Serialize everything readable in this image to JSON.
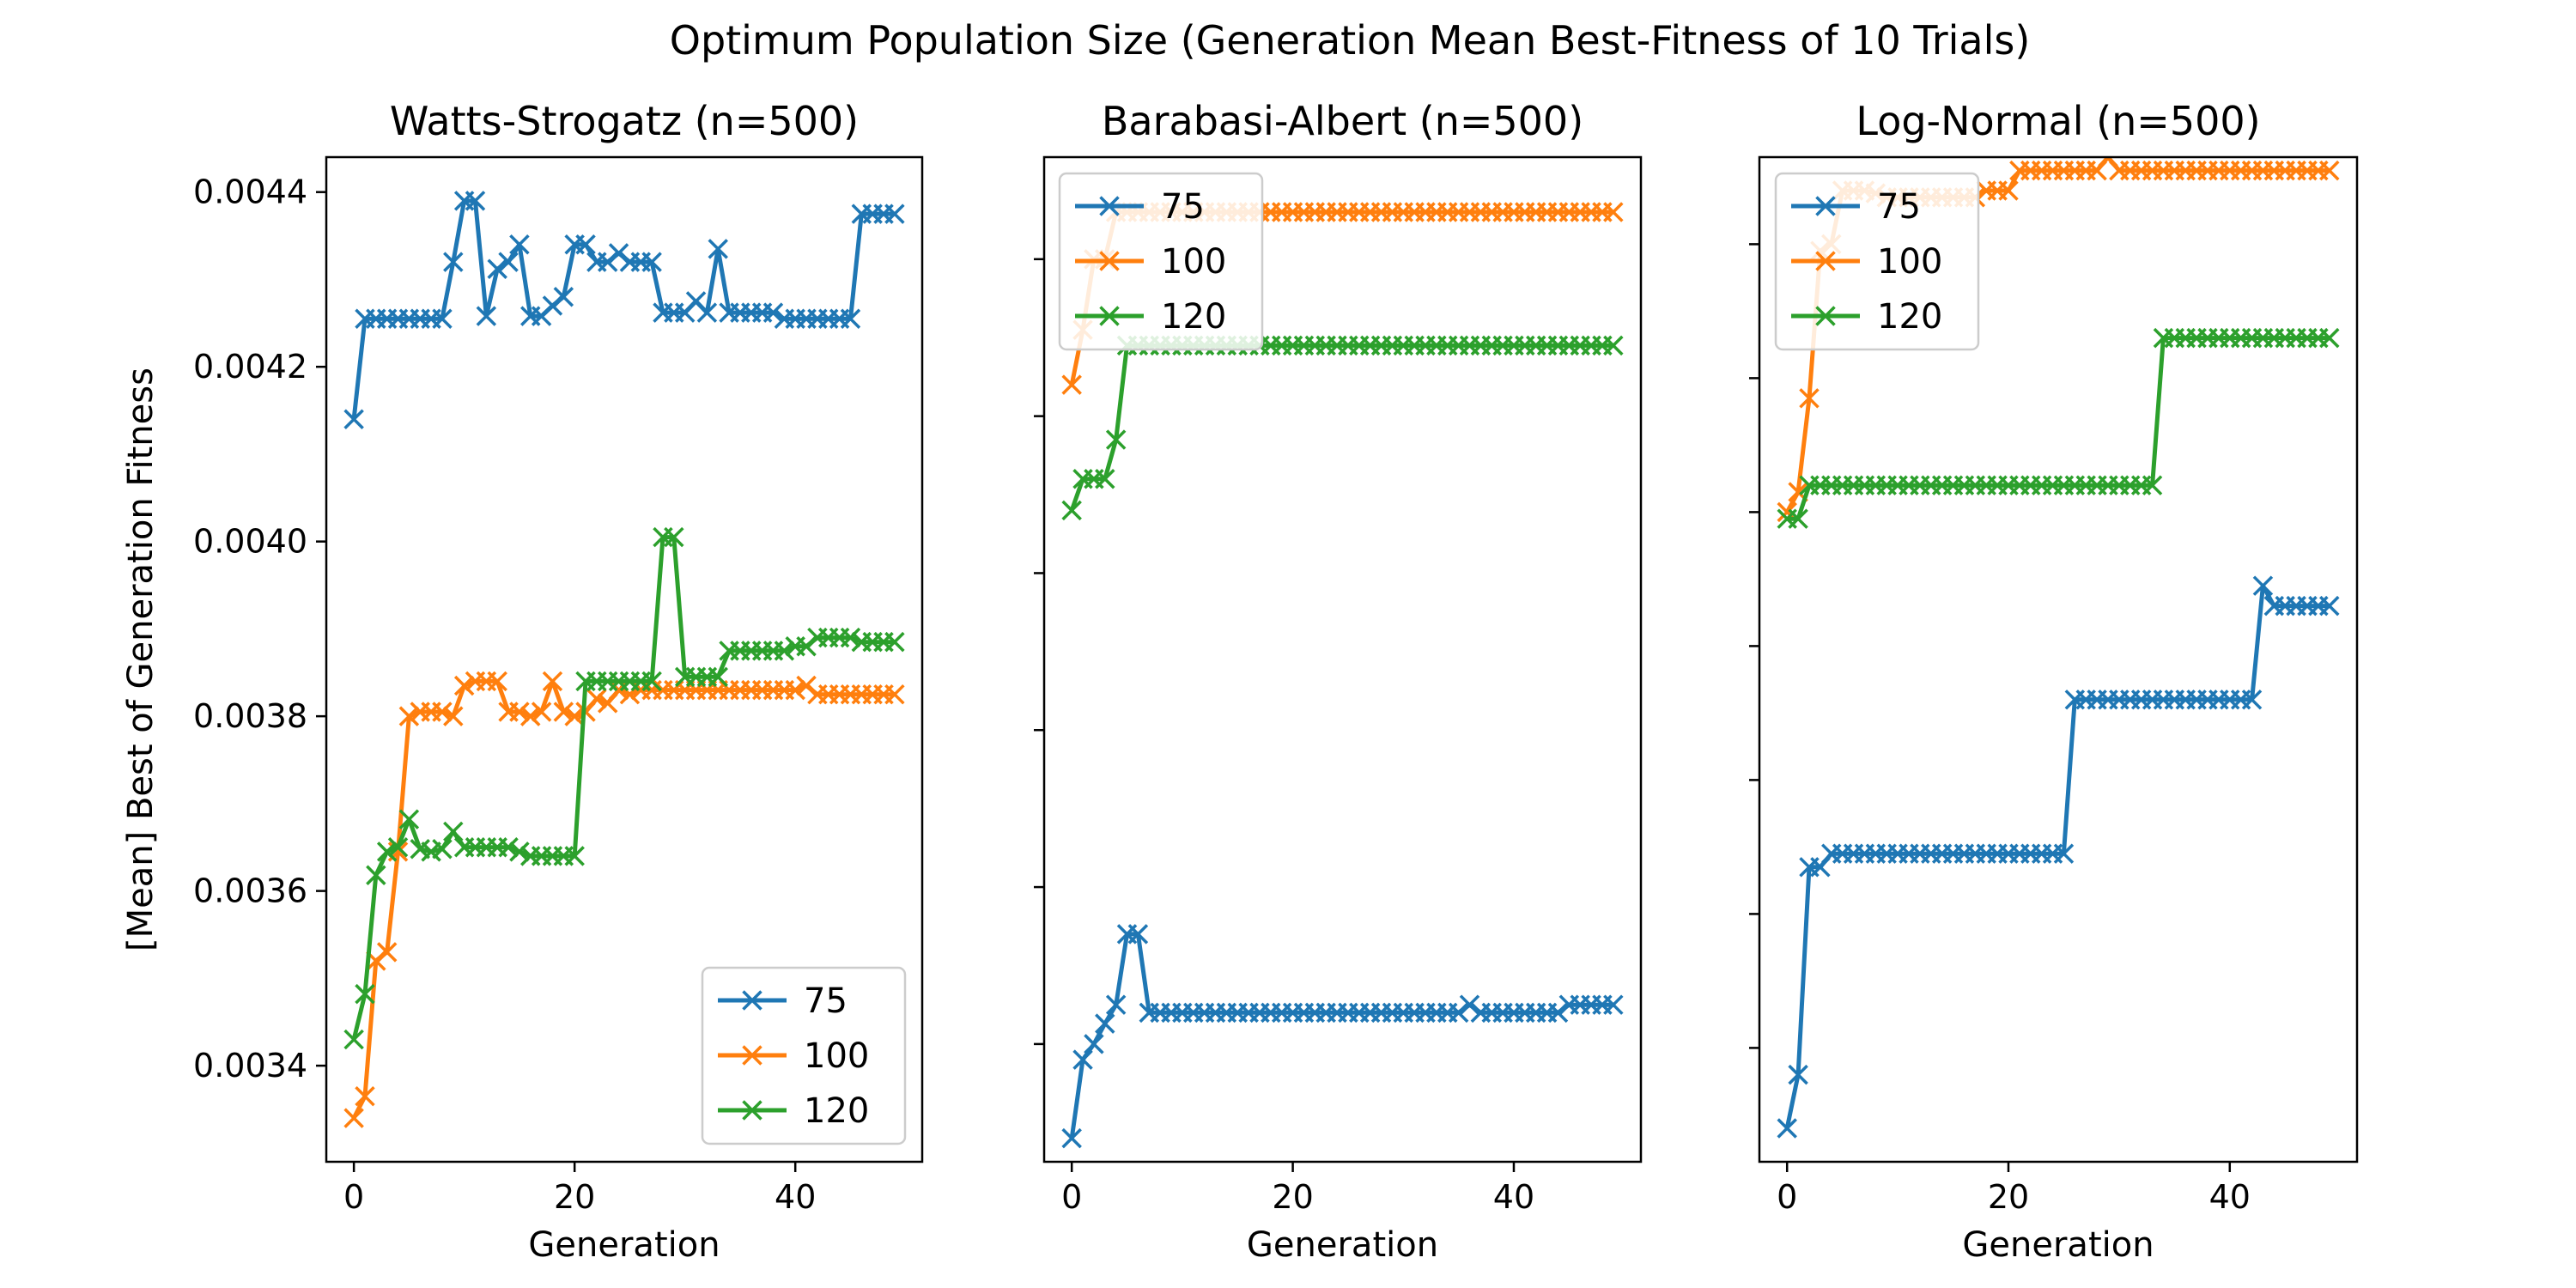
{
  "figure_title": "Optimum Population Size (Generation Mean Best-Fitness of 10 Trials)",
  "colors": {
    "s75": "#1f77b4",
    "s100": "#ff7f0e",
    "s120": "#2ca02c"
  },
  "chart_data": [
    {
      "type": "line",
      "title": "Watts-Strogatz (n=500)",
      "xlabel": "Generation",
      "ylabel": "[Mean] Best of Generation Fitness",
      "xlim": [
        -2.5,
        51.5
      ],
      "ylim": [
        0.00329,
        0.00444
      ],
      "xticks": [
        0,
        20,
        40
      ],
      "xtick_labels": [
        "0",
        "20",
        "40"
      ],
      "yticks": [
        0.0034,
        0.0036,
        0.0038,
        0.004,
        0.0042,
        0.0044
      ],
      "ytick_labels": [
        "0.0034",
        "0.0036",
        "0.0038",
        "0.0040",
        "0.0042",
        "0.0044"
      ],
      "legend": "lower-right",
      "grid": false,
      "series": [
        {
          "name": "75",
          "color": "#1f77b4",
          "values": [
            0.00414,
            0.004255,
            0.004255,
            0.004255,
            0.004255,
            0.004255,
            0.004255,
            0.004255,
            0.004255,
            0.00432,
            0.00439,
            0.00439,
            0.004258,
            0.004312,
            0.00432,
            0.00434,
            0.004258,
            0.004258,
            0.00427,
            0.00428,
            0.00434,
            0.00434,
            0.00432,
            0.00432,
            0.00433,
            0.00432,
            0.00432,
            0.00432,
            0.004262,
            0.004262,
            0.004262,
            0.004275,
            0.004262,
            0.004335,
            0.004262,
            0.004262,
            0.004262,
            0.004262,
            0.004262,
            0.004255,
            0.004255,
            0.004255,
            0.004255,
            0.004255,
            0.004255,
            0.004255,
            0.004375,
            0.004375,
            0.004375,
            0.004375
          ]
        },
        {
          "name": "100",
          "color": "#ff7f0e",
          "values": [
            0.00334,
            0.003365,
            0.00352,
            0.00353,
            0.003645,
            0.0038,
            0.003805,
            0.003805,
            0.003805,
            0.0038,
            0.003835,
            0.00384,
            0.00384,
            0.00384,
            0.003805,
            0.003805,
            0.0038,
            0.003805,
            0.00384,
            0.003805,
            0.0038,
            0.003805,
            0.00382,
            0.003815,
            0.00383,
            0.003825,
            0.00383,
            0.00383,
            0.00383,
            0.00383,
            0.00383,
            0.00383,
            0.00383,
            0.00383,
            0.00383,
            0.00383,
            0.00383,
            0.00383,
            0.00383,
            0.00383,
            0.00383,
            0.003835,
            0.003825,
            0.003825,
            0.003825,
            0.003825,
            0.003825,
            0.003825,
            0.003825,
            0.003825
          ]
        },
        {
          "name": "120",
          "color": "#2ca02c",
          "values": [
            0.00343,
            0.003482,
            0.003618,
            0.003645,
            0.00365,
            0.003682,
            0.003648,
            0.003645,
            0.003648,
            0.003668,
            0.00365,
            0.00365,
            0.00365,
            0.00365,
            0.00365,
            0.003645,
            0.00364,
            0.00364,
            0.00364,
            0.00364,
            0.00364,
            0.00384,
            0.00384,
            0.00384,
            0.00384,
            0.00384,
            0.00384,
            0.00384,
            0.004005,
            0.004005,
            0.003845,
            0.003845,
            0.003845,
            0.003845,
            0.003875,
            0.003875,
            0.003875,
            0.003875,
            0.003875,
            0.003875,
            0.00388,
            0.00388,
            0.00389,
            0.00389,
            0.00389,
            0.00389,
            0.003885,
            0.003885,
            0.003885,
            0.003885
          ]
        }
      ]
    },
    {
      "type": "line",
      "title": "Barabasi-Albert (n=500)",
      "xlabel": "Generation",
      "ylabel": "",
      "xlim": [
        -2.5,
        51.5
      ],
      "ylim": [
        0.003325,
        0.003965
      ],
      "xticks": [
        0,
        20,
        40
      ],
      "xtick_labels": [
        "0",
        "20",
        "40"
      ],
      "yticks": [
        0.0034,
        0.0035,
        0.0036,
        0.0037,
        0.0038,
        0.0039
      ],
      "ytick_labels": [],
      "legend": "upper-left",
      "grid": false,
      "series": [
        {
          "name": "75",
          "color": "#1f77b4",
          "values": [
            0.00334,
            0.00339,
            0.0034,
            0.003413,
            0.003425,
            0.00347,
            0.00347,
            0.00342,
            0.00342,
            0.00342,
            0.00342,
            0.00342,
            0.00342,
            0.00342,
            0.00342,
            0.00342,
            0.00342,
            0.00342,
            0.00342,
            0.00342,
            0.00342,
            0.00342,
            0.00342,
            0.00342,
            0.00342,
            0.00342,
            0.00342,
            0.00342,
            0.00342,
            0.00342,
            0.00342,
            0.00342,
            0.00342,
            0.00342,
            0.00342,
            0.00342,
            0.003425,
            0.00342,
            0.00342,
            0.00342,
            0.00342,
            0.00342,
            0.00342,
            0.00342,
            0.00342,
            0.003425,
            0.003425,
            0.003425,
            0.003425,
            0.003425
          ]
        },
        {
          "name": "100",
          "color": "#ff7f0e",
          "values": [
            0.00382,
            0.003855,
            0.0039,
            0.0039,
            0.00393,
            0.00393,
            0.00393,
            0.00393,
            0.00393,
            0.00393,
            0.00393,
            0.00393,
            0.00393,
            0.00393,
            0.00393,
            0.00393,
            0.00393,
            0.00393,
            0.00393,
            0.00393,
            0.00393,
            0.00393,
            0.00393,
            0.00393,
            0.00393,
            0.00393,
            0.00393,
            0.00393,
            0.00393,
            0.00393,
            0.00393,
            0.00393,
            0.00393,
            0.00393,
            0.00393,
            0.00393,
            0.00393,
            0.00393,
            0.00393,
            0.00393,
            0.00393,
            0.00393,
            0.00393,
            0.00393,
            0.00393,
            0.00393,
            0.00393,
            0.00393,
            0.00393,
            0.00393
          ]
        },
        {
          "name": "120",
          "color": "#2ca02c",
          "values": [
            0.00374,
            0.00376,
            0.00376,
            0.00376,
            0.003785,
            0.003845,
            0.003845,
            0.003845,
            0.003845,
            0.003845,
            0.003845,
            0.003845,
            0.003845,
            0.003845,
            0.003845,
            0.003845,
            0.003845,
            0.003845,
            0.003845,
            0.003845,
            0.003845,
            0.003845,
            0.003845,
            0.003845,
            0.003845,
            0.003845,
            0.003845,
            0.003845,
            0.003845,
            0.003845,
            0.003845,
            0.003845,
            0.003845,
            0.003845,
            0.003845,
            0.003845,
            0.003845,
            0.003845,
            0.003845,
            0.003845,
            0.003845,
            0.003845,
            0.003845,
            0.003845,
            0.003845,
            0.003845,
            0.003845,
            0.003845,
            0.003845,
            0.003845
          ]
        }
      ]
    },
    {
      "type": "line",
      "title": "Log-Normal (n=500)",
      "xlabel": "Generation",
      "ylabel": "",
      "xlim": [
        -2.5,
        51.5
      ],
      "ylim": [
        0.003315,
        0.004065
      ],
      "xticks": [
        0,
        20,
        40
      ],
      "xtick_labels": [
        "0",
        "20",
        "40"
      ],
      "yticks": [
        0.0034,
        0.0035,
        0.0036,
        0.0037,
        0.0038,
        0.0039,
        0.004
      ],
      "ytick_labels": [],
      "legend": "upper-left",
      "grid": false,
      "series": [
        {
          "name": "75",
          "color": "#1f77b4",
          "values": [
            0.00334,
            0.00338,
            0.003535,
            0.003535,
            0.003545,
            0.003545,
            0.003545,
            0.003545,
            0.003545,
            0.003545,
            0.003545,
            0.003545,
            0.003545,
            0.003545,
            0.003545,
            0.003545,
            0.003545,
            0.003545,
            0.003545,
            0.003545,
            0.003545,
            0.003545,
            0.003545,
            0.003545,
            0.003545,
            0.003545,
            0.00366,
            0.00366,
            0.00366,
            0.00366,
            0.00366,
            0.00366,
            0.00366,
            0.00366,
            0.00366,
            0.00366,
            0.00366,
            0.00366,
            0.00366,
            0.00366,
            0.00366,
            0.00366,
            0.00366,
            0.003745,
            0.00373,
            0.00373,
            0.00373,
            0.00373,
            0.00373,
            0.00373
          ]
        },
        {
          "name": "100",
          "color": "#ff7f0e",
          "values": [
            0.0038,
            0.003815,
            0.003885,
            0.003995,
            0.004,
            0.00404,
            0.00404,
            0.00404,
            0.004038,
            0.004035,
            0.004035,
            0.004035,
            0.004035,
            0.004035,
            0.004035,
            0.004035,
            0.004035,
            0.004035,
            0.00404,
            0.00404,
            0.00404,
            0.004055,
            0.004055,
            0.004055,
            0.004055,
            0.004055,
            0.004055,
            0.004055,
            0.004055,
            0.004065,
            0.004055,
            0.004055,
            0.004055,
            0.004055,
            0.004055,
            0.004055,
            0.004055,
            0.004055,
            0.004055,
            0.004055,
            0.004055,
            0.004055,
            0.004055,
            0.004055,
            0.004055,
            0.004055,
            0.004055,
            0.004055,
            0.004055,
            0.004055
          ]
        },
        {
          "name": "120",
          "color": "#2ca02c",
          "values": [
            0.003795,
            0.003795,
            0.00382,
            0.00382,
            0.00382,
            0.00382,
            0.00382,
            0.00382,
            0.00382,
            0.00382,
            0.00382,
            0.00382,
            0.00382,
            0.00382,
            0.00382,
            0.00382,
            0.00382,
            0.00382,
            0.00382,
            0.00382,
            0.00382,
            0.00382,
            0.00382,
            0.00382,
            0.00382,
            0.00382,
            0.00382,
            0.00382,
            0.00382,
            0.00382,
            0.00382,
            0.00382,
            0.00382,
            0.00382,
            0.00393,
            0.00393,
            0.00393,
            0.00393,
            0.00393,
            0.00393,
            0.00393,
            0.00393,
            0.00393,
            0.00393,
            0.00393,
            0.00393,
            0.00393,
            0.00393,
            0.00393,
            0.00393
          ]
        }
      ]
    }
  ]
}
